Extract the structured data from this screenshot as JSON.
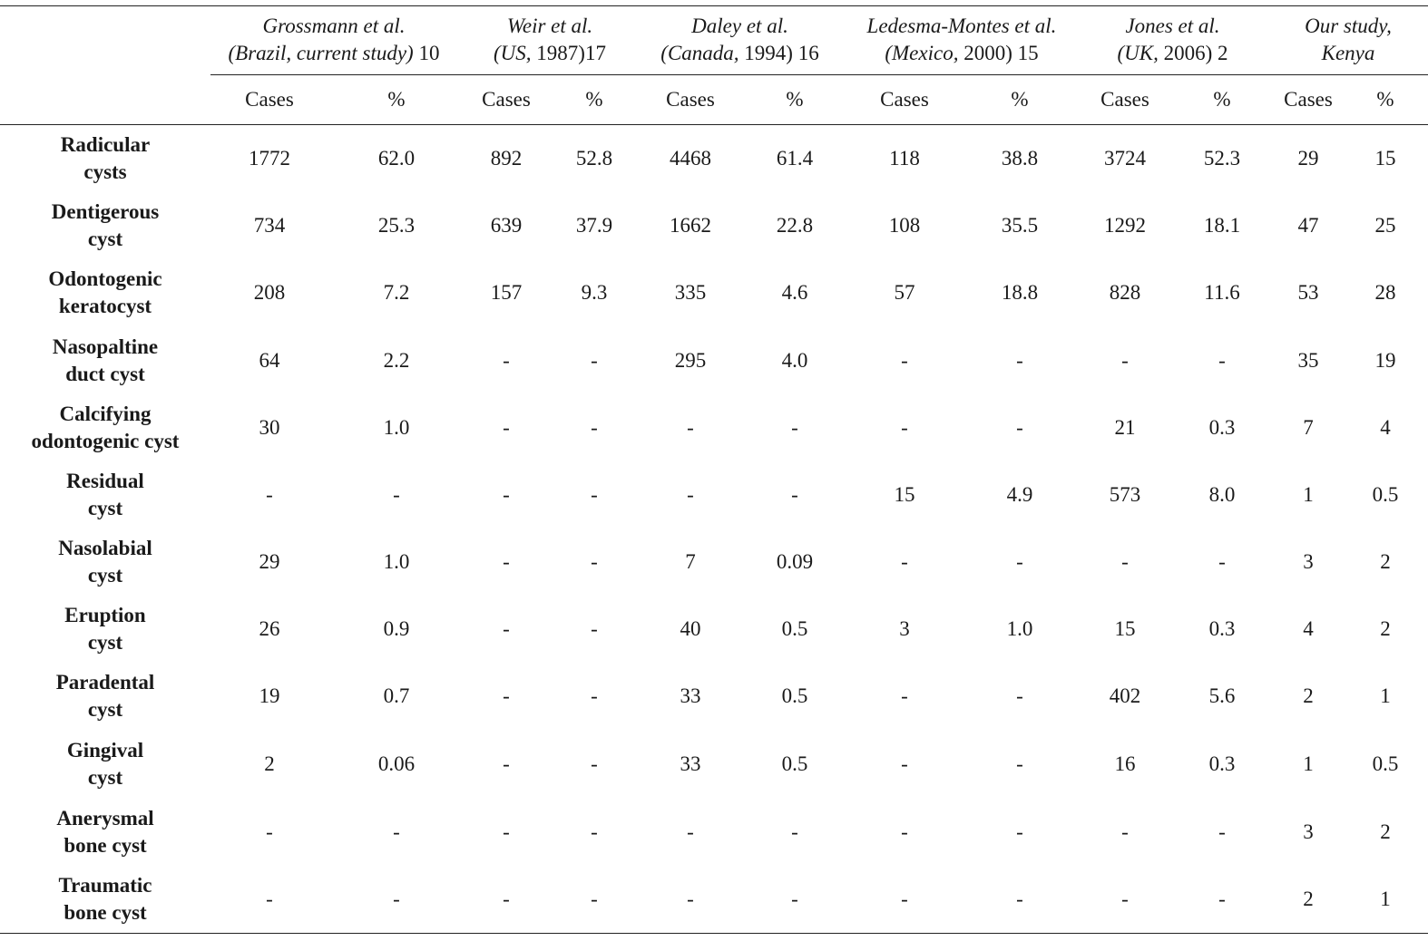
{
  "table": {
    "studies": [
      {
        "line1": "Grossmann et al.",
        "line2_italic": "(Brazil, current study)",
        "line2_ref": " 10"
      },
      {
        "line1": "Weir et al.",
        "line2_italic": "(US,",
        "line2_ref": " 1987)17"
      },
      {
        "line1": "Daley et al.",
        "line2_italic": "(Canada,",
        "line2_ref": " 1994) 16"
      },
      {
        "line1": "Ledesma-Montes et al.",
        "line2_italic": "(Mexico,",
        "line2_ref": " 2000) 15"
      },
      {
        "line1": "Jones et al.",
        "line2_italic": "(UK,",
        "line2_ref": " 2006) 2"
      },
      {
        "line1": "Our study,",
        "line2_italic": "Kenya",
        "line2_ref": ""
      }
    ],
    "subheaders": [
      "Cases",
      "%",
      "Cases",
      "%",
      "Cases",
      "%",
      "Cases",
      "%",
      "Cases",
      "%",
      "Cases",
      "%"
    ],
    "rows": [
      {
        "label1": "Radicular",
        "label2": "cysts",
        "cells": [
          "1772",
          "62.0",
          "892",
          "52.8",
          "4468",
          "61.4",
          "118",
          "38.8",
          "3724",
          "52.3",
          "29",
          "15"
        ]
      },
      {
        "label1": "Dentigerous",
        "label2": "cyst",
        "cells": [
          "734",
          "25.3",
          "639",
          "37.9",
          "1662",
          "22.8",
          "108",
          "35.5",
          "1292",
          "18.1",
          "47",
          "25"
        ]
      },
      {
        "label1": "Odontogenic",
        "label2": "keratocyst",
        "cells": [
          "208",
          "7.2",
          "157",
          "9.3",
          "335",
          "4.6",
          "57",
          "18.8",
          "828",
          "11.6",
          "53",
          "28"
        ]
      },
      {
        "label1": "Nasopaltine",
        "label2": "duct cyst",
        "cells": [
          "64",
          "2.2",
          "-",
          "-",
          "295",
          "4.0",
          "-",
          "-",
          "-",
          "-",
          "35",
          "19"
        ]
      },
      {
        "label1": "Calcifying",
        "label2": "odontogenic cyst",
        "cells": [
          "30",
          "1.0",
          "-",
          "-",
          "-",
          "-",
          "-",
          "-",
          "21",
          "0.3",
          "7",
          "4"
        ]
      },
      {
        "label1": "Residual",
        "label2": "cyst",
        "cells": [
          "-",
          "-",
          "-",
          "-",
          "-",
          "-",
          "15",
          "4.9",
          "573",
          "8.0",
          "1",
          "0.5"
        ]
      },
      {
        "label1": "Nasolabial",
        "label2": "cyst",
        "cells": [
          "29",
          "1.0",
          "-",
          "-",
          "7",
          "0.09",
          "-",
          "-",
          "-",
          "-",
          "3",
          "2"
        ]
      },
      {
        "label1": "Eruption",
        "label2": "cyst",
        "cells": [
          "26",
          "0.9",
          "-",
          "-",
          "40",
          "0.5",
          "3",
          "1.0",
          "15",
          "0.3",
          "4",
          "2"
        ]
      },
      {
        "label1": "Paradental",
        "label2": "cyst",
        "cells": [
          "19",
          "0.7",
          "-",
          "-",
          "33",
          "0.5",
          "-",
          "-",
          "402",
          "5.6",
          "2",
          "1"
        ]
      },
      {
        "label1": "Gingival",
        "label2": "cyst",
        "cells": [
          "2",
          "0.06",
          "-",
          "-",
          "33",
          "0.5",
          "-",
          "-",
          "16",
          "0.3",
          "1",
          "0.5"
        ]
      },
      {
        "label1": "Anerysmal",
        "label2": "bone cyst",
        "cells": [
          "-",
          "-",
          "-",
          "-",
          "-",
          "-",
          "-",
          "-",
          "-",
          "-",
          "3",
          "2"
        ]
      },
      {
        "label1": "Traumatic",
        "label2": "bone cyst",
        "cells": [
          "-",
          "-",
          "-",
          "-",
          "-",
          "-",
          "-",
          "-",
          "-",
          "-",
          "2",
          "1"
        ]
      }
    ]
  }
}
